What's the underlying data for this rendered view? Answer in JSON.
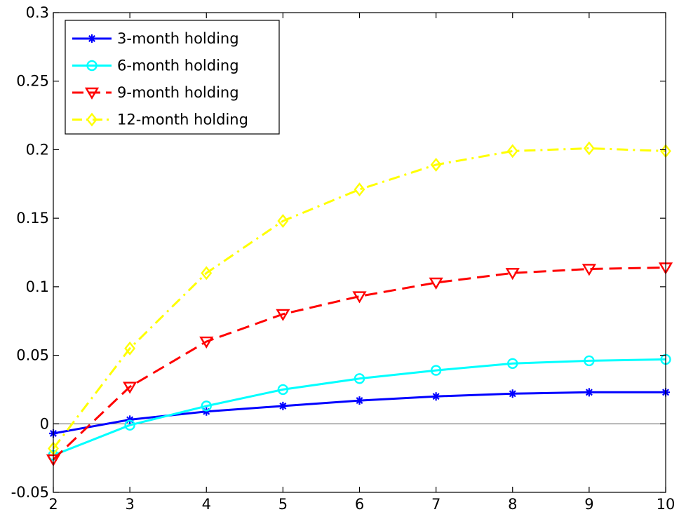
{
  "chart_data": {
    "type": "line",
    "title": "",
    "xlabel": "",
    "ylabel": "",
    "xlim": [
      2,
      10
    ],
    "ylim": [
      -0.05,
      0.3
    ],
    "x": [
      2,
      3,
      4,
      5,
      6,
      7,
      8,
      9,
      10
    ],
    "x_ticks": [
      "2",
      "3",
      "4",
      "5",
      "6",
      "7",
      "8",
      "9",
      "10"
    ],
    "y_ticks": [
      {
        "value": -0.05,
        "label": "-0.05"
      },
      {
        "value": 0,
        "label": "0"
      },
      {
        "value": 0.05,
        "label": "0.05"
      },
      {
        "value": 0.1,
        "label": "0.1"
      },
      {
        "value": 0.15,
        "label": "0.15"
      },
      {
        "value": 0.2,
        "label": "0.2"
      },
      {
        "value": 0.25,
        "label": "0.25"
      },
      {
        "value": 0.3,
        "label": "0.3"
      }
    ],
    "grid": false,
    "zero_line": true,
    "legend_position": "top-left",
    "series": [
      {
        "name": "3-month holding",
        "color": "#0000ff",
        "marker": "star",
        "dash": "solid",
        "values": [
          -0.007,
          0.003,
          0.009,
          0.013,
          0.017,
          0.02,
          0.022,
          0.023,
          0.023
        ]
      },
      {
        "name": "6-month holding",
        "color": "#00ffff",
        "marker": "circle",
        "dash": "solid",
        "values": [
          -0.023,
          -0.001,
          0.013,
          0.025,
          0.033,
          0.039,
          0.044,
          0.046,
          0.047
        ]
      },
      {
        "name": "9-month holding",
        "color": "#ff0000",
        "marker": "triangle-down",
        "dash": "dashed",
        "values": [
          -0.026,
          0.027,
          0.06,
          0.08,
          0.093,
          0.103,
          0.11,
          0.113,
          0.114
        ]
      },
      {
        "name": "12-month holding",
        "color": "#ffff00",
        "marker": "diamond",
        "dash": "dashdot",
        "values": [
          -0.018,
          0.055,
          0.11,
          0.148,
          0.171,
          0.189,
          0.199,
          0.201,
          0.199
        ]
      }
    ]
  }
}
